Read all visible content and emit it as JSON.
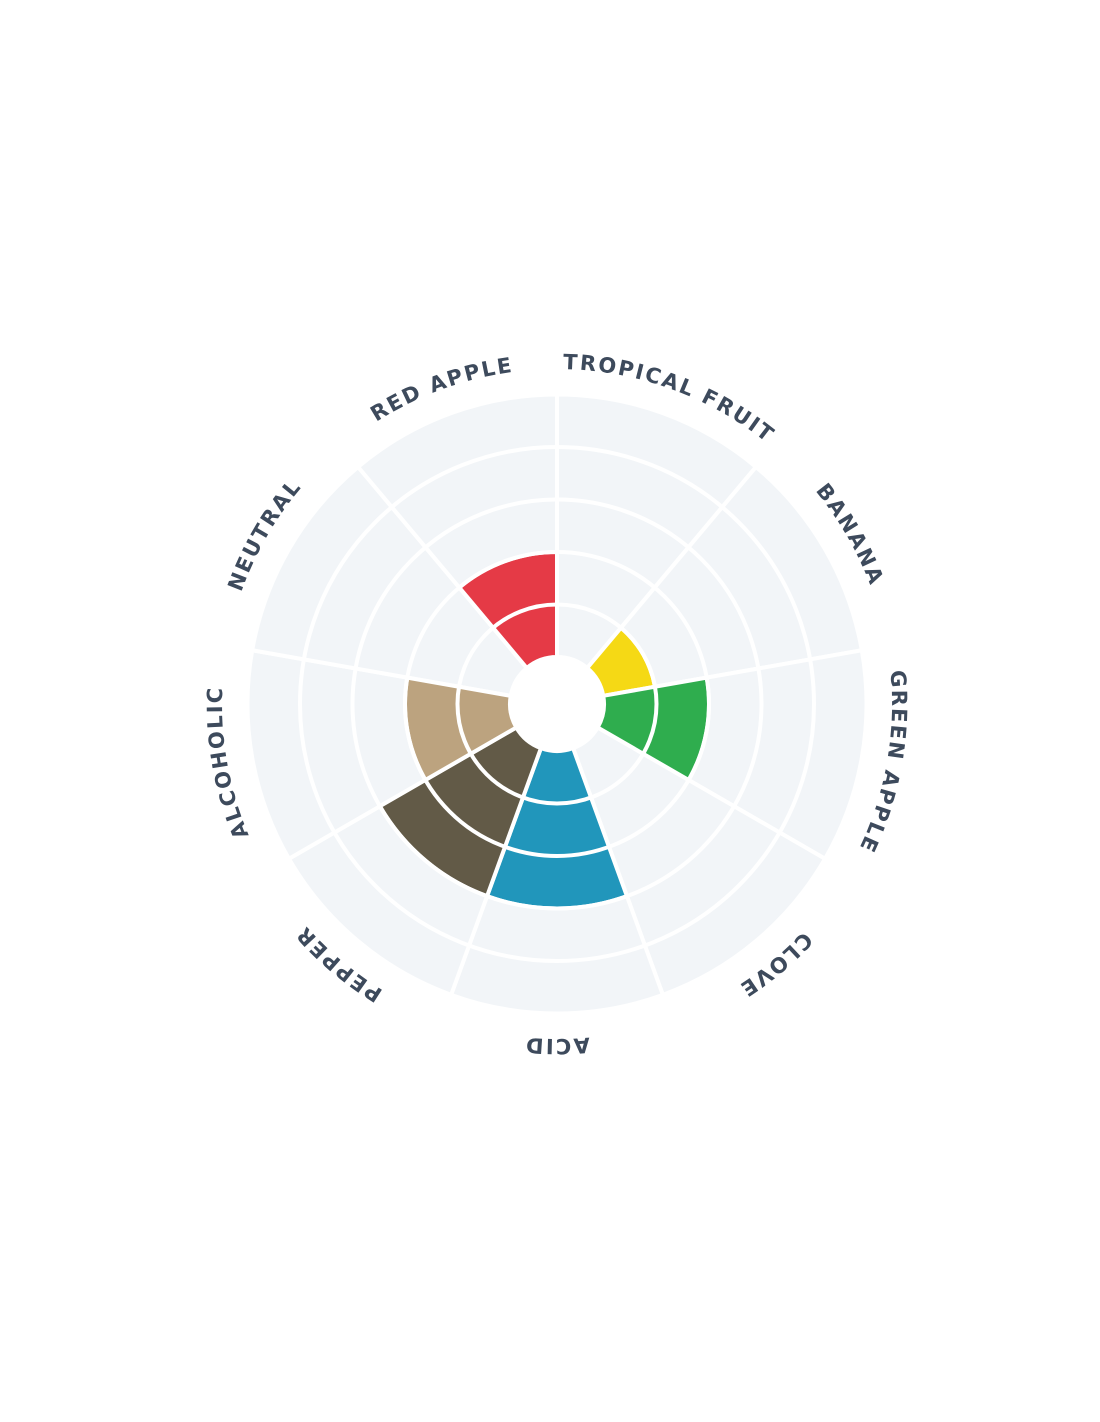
{
  "chart_data": {
    "type": "polar-area",
    "title": "",
    "categories": [
      "TROPICAL FRUIT",
      "BANANA",
      "GREEN APPLE",
      "CLOVE",
      "ACID",
      "PEPPER",
      "ALCOHOLIC",
      "NEUTRAL",
      "RED APPLE"
    ],
    "values": [
      0,
      1,
      2,
      0,
      3,
      3,
      2,
      0,
      2
    ],
    "max_level": 5,
    "colors": [
      "#e8e8e8",
      "#f5d915",
      "#2fad4e",
      "#e8e8e8",
      "#2196bb",
      "#625a47",
      "#bca37f",
      "#e8e8e8",
      "#e53a46"
    ],
    "background_color": "#f2f5f8",
    "label_color": "#3d4a5c",
    "grid": true
  }
}
